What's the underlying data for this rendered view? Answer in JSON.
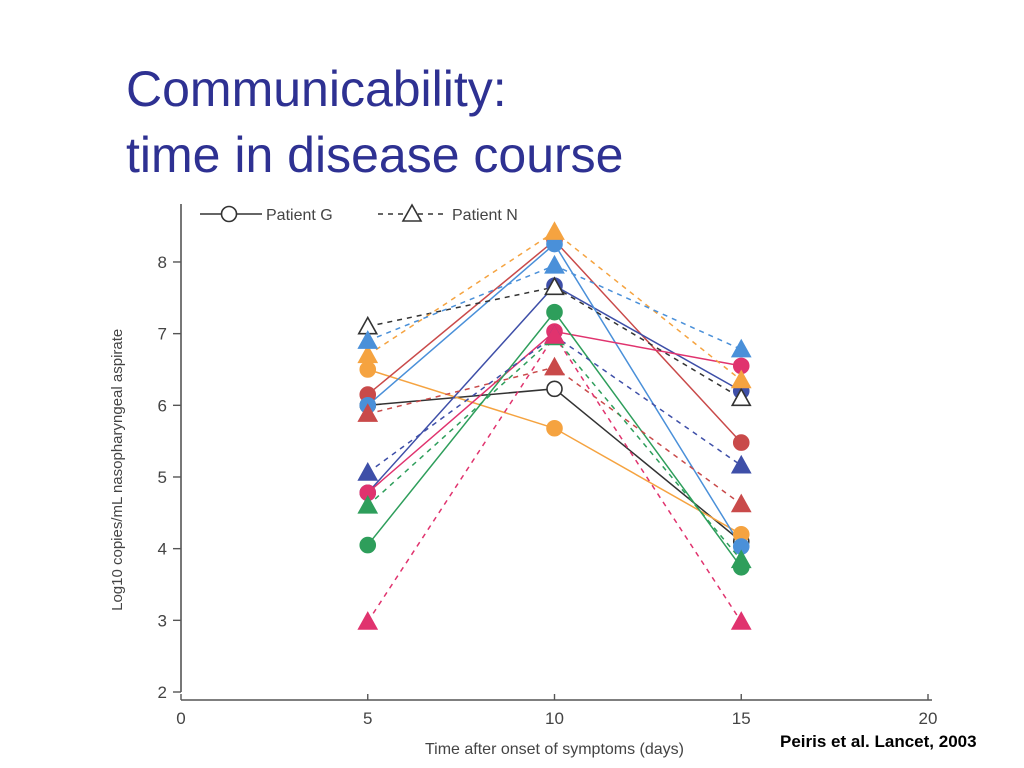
{
  "slide": {
    "title_line1": "Communicability:",
    "title_line2": "time in disease course",
    "title_color": "#2e3192",
    "citation": "Peiris et al. Lancet, 2003"
  },
  "chart_data": {
    "type": "line",
    "xlabel": "Time after onset of symptoms (days)",
    "ylabel": "Log10 copies/mL nasopharyngeal aspirate",
    "xlim": [
      0,
      20
    ],
    "ylim": [
      2,
      8.7
    ],
    "xticks": [
      0,
      5,
      10,
      15,
      20
    ],
    "yticks": [
      2,
      3,
      4,
      5,
      6,
      7,
      8
    ],
    "x": [
      5,
      10,
      15
    ],
    "grid": false,
    "legend": {
      "placement": "top",
      "entries": [
        {
          "label": "Patient G",
          "marker": "circle",
          "style": "solid"
        },
        {
          "label": "Patient N",
          "marker": "triangle",
          "style": "dashed"
        }
      ]
    },
    "series": [
      {
        "marker": "circle",
        "style": "solid",
        "color": "#333333",
        "hollow": true,
        "values": [
          6.0,
          6.23,
          4.1
        ]
      },
      {
        "marker": "circle",
        "style": "solid",
        "color": "#f5a340",
        "values": [
          6.5,
          5.68,
          4.2
        ]
      },
      {
        "marker": "circle",
        "style": "solid",
        "color": "#c94a4a",
        "values": [
          6.15,
          8.3,
          5.48
        ]
      },
      {
        "marker": "circle",
        "style": "solid",
        "color": "#3e4fa8",
        "values": [
          4.78,
          7.67,
          6.2
        ]
      },
      {
        "marker": "circle",
        "style": "solid",
        "color": "#4a90d9",
        "values": [
          6.0,
          8.25,
          4.03
        ]
      },
      {
        "marker": "circle",
        "style": "solid",
        "color": "#e0336e",
        "values": [
          4.78,
          7.03,
          6.55
        ]
      },
      {
        "marker": "circle",
        "style": "solid",
        "color": "#2e9e5b",
        "values": [
          4.05,
          7.3,
          3.74
        ]
      },
      {
        "marker": "triangle",
        "style": "dashed",
        "color": "#333333",
        "hollow": true,
        "values": [
          7.1,
          7.65,
          6.1
        ]
      },
      {
        "marker": "triangle",
        "style": "dashed",
        "color": "#f5a340",
        "values": [
          6.7,
          8.42,
          6.35
        ]
      },
      {
        "marker": "triangle",
        "style": "dashed",
        "color": "#4a90d9",
        "values": [
          6.9,
          7.95,
          6.78
        ]
      },
      {
        "marker": "triangle",
        "style": "dashed",
        "color": "#c94a4a",
        "values": [
          5.88,
          6.53,
          4.62
        ]
      },
      {
        "marker": "triangle",
        "style": "dashed",
        "color": "#3e4fa8",
        "values": [
          5.06,
          6.97,
          5.16
        ]
      },
      {
        "marker": "triangle",
        "style": "dashed",
        "color": "#2e9e5b",
        "values": [
          4.6,
          6.95,
          3.84
        ]
      },
      {
        "marker": "triangle",
        "style": "dashed",
        "color": "#e0336e",
        "values": [
          2.98,
          6.97,
          2.98
        ]
      }
    ]
  }
}
